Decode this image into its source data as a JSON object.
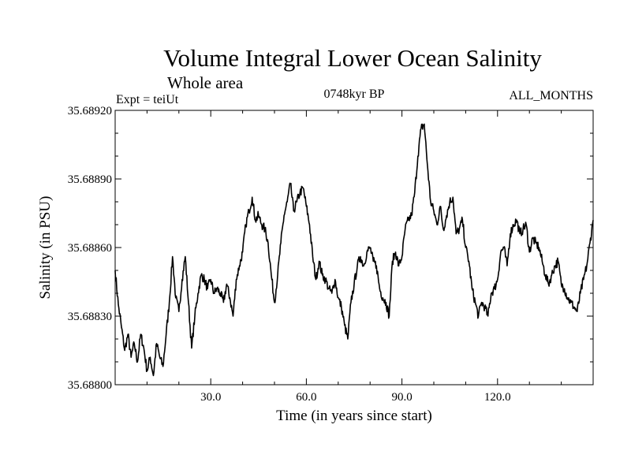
{
  "chart_data": {
    "type": "line",
    "title": "Volume Integral Lower Ocean Salinity",
    "subtitle": "Whole area",
    "experiment": "Expt = teiUt",
    "period": "0748kyr BP",
    "months": "ALL_MONTHS",
    "xlabel": "Time (in years since start)",
    "ylabel": "Salinity (in PSU)",
    "xlim": [
      0,
      150
    ],
    "ylim": [
      35.688,
      35.6892
    ],
    "xticks": [
      30,
      60,
      90,
      120
    ],
    "xtick_labels": [
      "30.0",
      "60.0",
      "90.0",
      "120.0"
    ],
    "yticks": [
      35.688,
      35.6883,
      35.6886,
      35.6889,
      35.6892
    ],
    "ytick_labels": [
      "35.68800",
      "35.68830",
      "35.68860",
      "35.68890",
      "35.68920"
    ],
    "grid": false,
    "series": [
      {
        "name": "Salinity",
        "color": "#000000",
        "x": [
          0,
          1,
          2,
          3,
          4,
          5,
          6,
          7,
          8,
          9,
          10,
          11,
          12,
          13,
          14,
          15,
          16,
          17,
          18,
          19,
          20,
          21,
          22,
          23,
          24,
          25,
          26,
          27,
          28,
          29,
          30,
          31,
          32,
          33,
          34,
          35,
          36,
          37,
          38,
          39,
          40,
          41,
          42,
          43,
          44,
          45,
          46,
          47,
          48,
          49,
          50,
          51,
          52,
          53,
          54,
          55,
          56,
          57,
          58,
          59,
          60,
          61,
          62,
          63,
          64,
          65,
          66,
          67,
          68,
          69,
          70,
          71,
          72,
          73,
          74,
          75,
          76,
          77,
          78,
          79,
          80,
          81,
          82,
          83,
          84,
          85,
          86,
          87,
          88,
          89,
          90,
          91,
          92,
          93,
          94,
          95,
          96,
          97,
          98,
          99,
          100,
          101,
          102,
          103,
          104,
          105,
          106,
          107,
          108,
          109,
          110,
          111,
          112,
          113,
          114,
          115,
          116,
          117,
          118,
          119,
          120,
          121,
          122,
          123,
          124,
          125,
          126,
          127,
          128,
          129,
          130,
          131,
          132,
          133,
          134,
          135,
          136,
          137,
          138,
          139,
          140,
          141,
          142,
          143,
          144,
          145,
          146,
          147,
          148,
          149,
          150
        ],
        "values": [
          35.6885,
          35.68835,
          35.68825,
          35.68815,
          35.68822,
          35.68812,
          35.68818,
          35.6881,
          35.68822,
          35.68816,
          35.68806,
          35.68812,
          35.68804,
          35.68818,
          35.68812,
          35.68808,
          35.68822,
          35.68836,
          35.68856,
          35.68838,
          35.68832,
          35.68846,
          35.68856,
          35.68836,
          35.68816,
          35.6883,
          35.6884,
          35.68848,
          35.68846,
          35.68842,
          35.68846,
          35.6884,
          35.68842,
          35.6884,
          35.68836,
          35.68844,
          35.68838,
          35.6883,
          35.68846,
          35.68852,
          35.68858,
          35.6887,
          35.68876,
          35.68882,
          35.68872,
          35.68874,
          35.6887,
          35.68868,
          35.68862,
          35.68848,
          35.68836,
          35.68848,
          35.68862,
          35.68874,
          35.6888,
          35.68888,
          35.68876,
          35.6888,
          35.68884,
          35.68886,
          35.68878,
          35.6887,
          35.68856,
          35.68846,
          35.68854,
          35.68848,
          35.68846,
          35.68842,
          35.6884,
          35.68846,
          35.68838,
          35.68834,
          35.68826,
          35.6882,
          35.68836,
          35.68844,
          35.68852,
          35.68856,
          35.68852,
          35.68858,
          35.6886,
          35.68854,
          35.68852,
          35.68842,
          35.68838,
          35.68836,
          35.6883,
          35.68854,
          35.68858,
          35.68852,
          35.68856,
          35.68868,
          35.68872,
          35.68874,
          35.68884,
          35.689,
          35.68912,
          35.68914,
          35.68896,
          35.6888,
          35.68876,
          35.6887,
          35.68878,
          35.68868,
          35.68874,
          35.6888,
          35.68882,
          35.68866,
          35.68868,
          35.68872,
          35.6886,
          35.68854,
          35.68842,
          35.68836,
          35.6883,
          35.68836,
          35.68834,
          35.6883,
          35.6884,
          35.68842,
          35.68846,
          35.68858,
          35.6886,
          35.68852,
          35.68866,
          35.6887,
          35.68872,
          35.68866,
          35.68868,
          35.6887,
          35.68858,
          35.68864,
          35.68862,
          35.6886,
          35.68854,
          35.68848,
          35.68844,
          35.68848,
          35.68852,
          35.68854,
          35.68844,
          35.68842,
          35.68838,
          35.68836,
          35.68834,
          35.68832,
          35.6884,
          35.68846,
          35.68852,
          35.68862,
          35.68872
        ]
      }
    ]
  }
}
